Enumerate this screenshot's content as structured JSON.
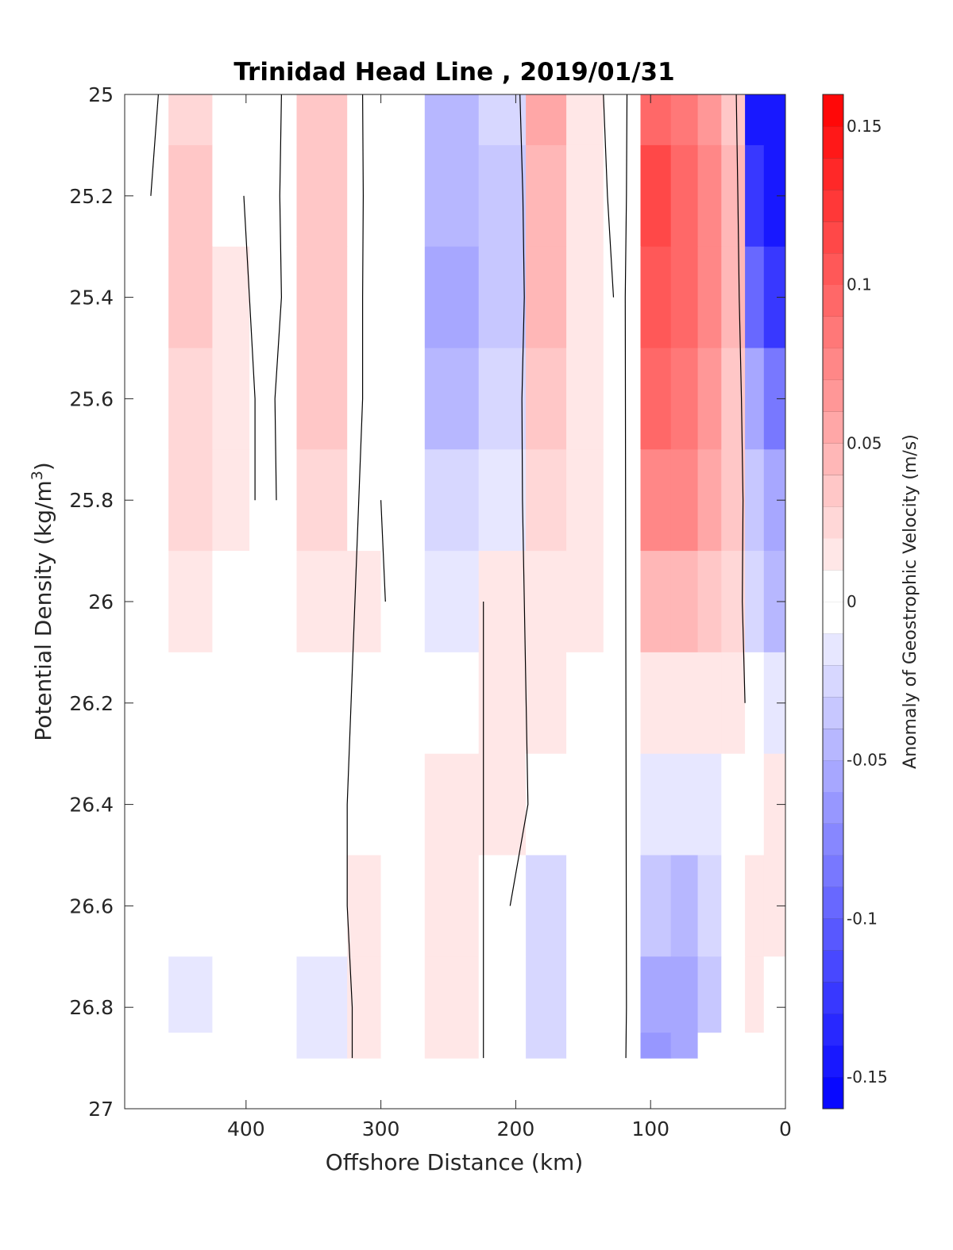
{
  "chart_data": {
    "type": "heatmap",
    "title": "Trinidad Head Line , 2019/01/31",
    "xlabel": "Offshore Distance (km)",
    "ylabel": "Potential Density (kg/m",
    "ylabel_superscript": "3",
    "ylabel_close": ")",
    "xlim": [
      490,
      0
    ],
    "ylim": [
      25,
      27
    ],
    "x_reversed": true,
    "y_reversed": true,
    "xticks": [
      400,
      300,
      200,
      100,
      0
    ],
    "xtick_labels": [
      "400",
      "300",
      "200",
      "100",
      "0"
    ],
    "yticks": [
      25,
      25.2,
      25.4,
      25.6,
      25.8,
      26,
      26.2,
      26.4,
      26.6,
      26.8,
      27
    ],
    "ytick_labels": [
      "25",
      "25.2",
      "25.4",
      "25.6",
      "25.8",
      "26",
      "26.2",
      "26.4",
      "26.6",
      "26.8",
      "27"
    ],
    "grid": false,
    "colorbar": {
      "label": "Anomaly of Geostrophic Velocity (m/s)",
      "limits": [
        -0.16,
        0.16
      ],
      "levels": 32,
      "colormap": "blue-white-red",
      "ticks": [
        0.15,
        0.1,
        0.05,
        0,
        -0.05,
        -0.1,
        -0.15
      ],
      "tick_labels": [
        "0.15",
        "0.1",
        "0.05",
        "0",
        "-0.05",
        "-0.1",
        "-0.15"
      ],
      "position": "right"
    },
    "colors": {
      "positive": "#ff0000",
      "negative": "#0000ff",
      "zero": "#ffffff",
      "zero_contour": "#000000"
    },
    "distance_km": [
      475,
      440,
      410,
      385,
      340,
      310,
      290,
      245,
      210,
      175,
      150,
      120,
      95,
      75,
      55,
      40,
      20,
      12
    ],
    "density_levels": [
      25.0,
      25.2,
      25.4,
      25.6,
      25.8,
      26.0,
      26.2,
      26.4,
      26.6,
      26.8,
      26.9
    ],
    "velocity_anomaly": [
      [
        -0.01,
        0.025,
        -0.005,
        -0.01,
        0.03,
        -0.004,
        -0.01,
        -0.05,
        -0.03,
        0.05,
        0.01,
        -0.01,
        0.09,
        0.08,
        0.06,
        0.03,
        -0.14,
        -0.15
      ],
      [
        -0.005,
        0.035,
        0.005,
        -0.01,
        0.035,
        -0.004,
        -0.01,
        -0.05,
        -0.035,
        0.045,
        0.015,
        -0.01,
        0.11,
        0.09,
        0.07,
        0.04,
        -0.13,
        -0.15
      ],
      [
        0.0,
        0.03,
        0.01,
        -0.01,
        0.03,
        -0.004,
        -0.01,
        -0.06,
        -0.035,
        0.04,
        0.015,
        -0.005,
        0.1,
        0.09,
        0.07,
        0.04,
        -0.1,
        -0.13
      ],
      [
        0.0,
        0.025,
        0.01,
        -0.005,
        0.03,
        -0.004,
        -0.005,
        -0.045,
        -0.025,
        0.035,
        0.015,
        0.0,
        0.09,
        0.085,
        0.065,
        0.035,
        -0.06,
        -0.09
      ],
      [
        0.0,
        0.02,
        0.01,
        -0.005,
        0.025,
        0.005,
        -0.005,
        -0.03,
        -0.015,
        0.02,
        0.015,
        0.005,
        0.07,
        0.075,
        0.055,
        0.03,
        -0.04,
        -0.06
      ],
      [
        0.0,
        0.012,
        0.005,
        0.0,
        0.015,
        0.01,
        -0.005,
        -0.015,
        0.01,
        0.012,
        0.01,
        0.005,
        0.04,
        0.045,
        0.035,
        0.02,
        -0.03,
        -0.05
      ],
      [
        0.0,
        0.0,
        0.0,
        0.0,
        0.005,
        0.005,
        0.0,
        0.0,
        0.012,
        0.01,
        0.005,
        0.0,
        0.015,
        0.015,
        0.015,
        0.01,
        -0.01,
        -0.02
      ],
      [
        0.0,
        0.0,
        0.0,
        0.0,
        -0.005,
        0.005,
        0.0,
        0.01,
        0.012,
        -0.01,
        0.005,
        0.0,
        -0.015,
        -0.02,
        -0.015,
        0.0,
        0.005,
        0.01
      ],
      [
        0.0,
        -0.01,
        0.0,
        0.0,
        -0.01,
        0.01,
        0.0,
        0.015,
        0.005,
        -0.025,
        0.0,
        0.0,
        -0.035,
        -0.045,
        -0.03,
        0.005,
        0.01,
        0.015
      ],
      [
        0.0,
        -0.012,
        0.0,
        0.0,
        -0.02,
        0.012,
        0.0,
        0.015,
        0.0,
        -0.03,
        0.0,
        0.005,
        -0.055,
        -0.06,
        -0.04,
        0.0,
        0.01,
        0.0
      ],
      [
        0.0,
        -0.01,
        0.0,
        0.0,
        -0.02,
        0.012,
        0.0,
        0.015,
        -0.01,
        -0.03,
        0.0,
        0.005,
        -0.07,
        -0.06,
        0.0,
        0.0,
        0.0,
        0.0
      ]
    ]
  }
}
